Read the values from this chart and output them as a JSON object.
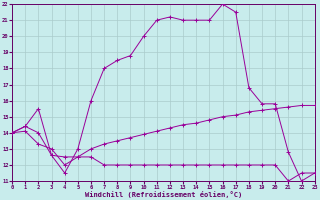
{
  "xlabel": "Windchill (Refroidissement éolien,°C)",
  "background_color": "#c8ecec",
  "grid_color": "#aacccc",
  "line_color": "#990099",
  "tick_color": "#660066",
  "xlim": [
    0,
    23
  ],
  "ylim": [
    11,
    22
  ],
  "xticks": [
    0,
    1,
    2,
    3,
    4,
    5,
    6,
    7,
    8,
    9,
    10,
    11,
    12,
    13,
    14,
    15,
    16,
    17,
    18,
    19,
    20,
    21,
    22,
    23
  ],
  "yticks": [
    11,
    12,
    13,
    14,
    15,
    16,
    17,
    18,
    19,
    20,
    21,
    22
  ],
  "line1_x": [
    0,
    1,
    2,
    3,
    4,
    5,
    6,
    7,
    8,
    9,
    10,
    11,
    12,
    13,
    14,
    15,
    16,
    17,
    18,
    19,
    20,
    21,
    22,
    23
  ],
  "line1_y": [
    14.0,
    14.4,
    14.0,
    12.6,
    12.5,
    12.5,
    12.5,
    12.0,
    12.0,
    12.0,
    12.0,
    12.0,
    12.0,
    12.0,
    12.0,
    12.0,
    12.0,
    12.0,
    12.0,
    12.0,
    12.0,
    11.0,
    11.5,
    11.5
  ],
  "line2_x": [
    0,
    1,
    2,
    3,
    4,
    5,
    6,
    7,
    8,
    9,
    10,
    11,
    12,
    13,
    14,
    15,
    16,
    17,
    18,
    19,
    20,
    21,
    22,
    23
  ],
  "line2_y": [
    14.0,
    14.1,
    13.3,
    13.0,
    12.0,
    12.5,
    13.0,
    13.3,
    13.5,
    13.7,
    13.9,
    14.1,
    14.3,
    14.5,
    14.6,
    14.8,
    15.0,
    15.1,
    15.3,
    15.4,
    15.5,
    15.6,
    15.7,
    15.7
  ],
  "line3_x": [
    0,
    1,
    2,
    3,
    4,
    5,
    6,
    7,
    8,
    9,
    10,
    11,
    12,
    13,
    14,
    15,
    16,
    17,
    18,
    19,
    20,
    21,
    22,
    23
  ],
  "line3_y": [
    14.0,
    14.4,
    15.5,
    12.6,
    11.5,
    13.0,
    16.0,
    18.0,
    18.5,
    18.8,
    20.0,
    21.0,
    21.2,
    21.0,
    21.0,
    21.0,
    22.0,
    21.5,
    16.8,
    15.8,
    15.8,
    12.8,
    11.0,
    11.5
  ]
}
